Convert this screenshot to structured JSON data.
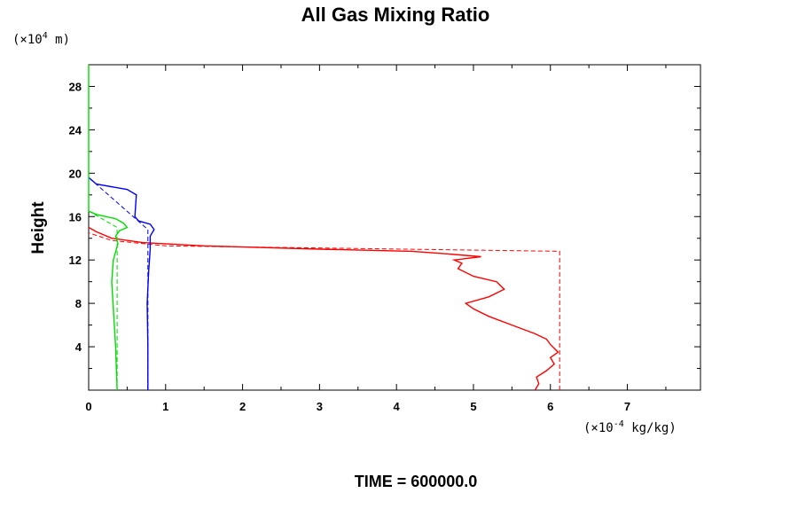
{
  "chart_data": {
    "type": "line",
    "title": "All Gas Mixing Ratio",
    "ylabel": "Height",
    "y_unit": {
      "prefix": "(×10",
      "exp": "4",
      "suffix": " m)"
    },
    "x_unit": {
      "prefix": "(×10",
      "exp": "-4",
      "suffix": " kg/kg)"
    },
    "footer": "TIME = 600000.0",
    "xlim": [
      0,
      7.95
    ],
    "ylim": [
      0,
      30
    ],
    "x_ticks": [
      0,
      1,
      2,
      3,
      4,
      5,
      6,
      7
    ],
    "y_ticks": [
      4,
      8,
      12,
      16,
      20,
      24,
      28
    ],
    "grid": false,
    "legend": "none",
    "series": [
      {
        "color": "#ff0000",
        "style": "solid",
        "x": [
          5.8,
          5.85,
          5.82,
          5.95,
          6.05,
          6.0,
          6.1,
          6.0,
          5.95,
          5.8,
          5.5,
          5.2,
          5.0,
          4.9,
          5.2,
          5.4,
          5.3,
          5.0,
          4.8,
          4.85,
          4.75,
          5.1,
          4.6,
          4.2,
          3.0,
          1.5,
          0.7,
          0.3,
          0.1,
          0.0
        ],
        "y": [
          0.0,
          0.6,
          1.2,
          1.8,
          2.4,
          3.0,
          3.5,
          4.2,
          4.7,
          5.2,
          6.0,
          6.8,
          7.5,
          8.0,
          8.6,
          9.3,
          10.0,
          10.5,
          11.2,
          11.7,
          12.0,
          12.3,
          12.6,
          12.8,
          13.0,
          13.3,
          13.6,
          14.0,
          14.6,
          15.0
        ]
      },
      {
        "color": "#ff0000",
        "style": "dashed",
        "x": [
          6.12,
          6.12,
          1.0,
          0.3,
          0.0
        ],
        "y": [
          0.0,
          12.8,
          13.3,
          13.8,
          14.5
        ]
      },
      {
        "color": "#0000ff",
        "style": "solid",
        "x": [
          0.77,
          0.77,
          0.76,
          0.78,
          0.8,
          0.8,
          0.85,
          0.8,
          0.65,
          0.6,
          0.62,
          0.5,
          0.1,
          0.0
        ],
        "y": [
          0.0,
          4.0,
          8.0,
          11.0,
          13.0,
          14.2,
          14.8,
          15.3,
          15.6,
          16.0,
          18.0,
          18.5,
          19.0,
          19.6
        ]
      },
      {
        "color": "#0000ff",
        "style": "dashed",
        "x": [
          0.77,
          0.77,
          0.0
        ],
        "y": [
          0.0,
          14.8,
          19.6
        ]
      },
      {
        "color": "#00dd00",
        "style": "solid",
        "x": [
          0.37,
          0.35,
          0.3,
          0.32,
          0.38,
          0.35,
          0.4,
          0.5,
          0.45,
          0.35,
          0.1,
          0.0,
          0.0
        ],
        "y": [
          0.0,
          4.0,
          10.0,
          12.0,
          13.5,
          14.2,
          14.7,
          15.0,
          15.4,
          15.8,
          16.2,
          16.5,
          30.0
        ]
      },
      {
        "color": "#00dd00",
        "style": "dashed",
        "x": [
          0.37,
          0.37,
          0.0
        ],
        "y": [
          0.0,
          15.0,
          16.5
        ]
      }
    ]
  }
}
